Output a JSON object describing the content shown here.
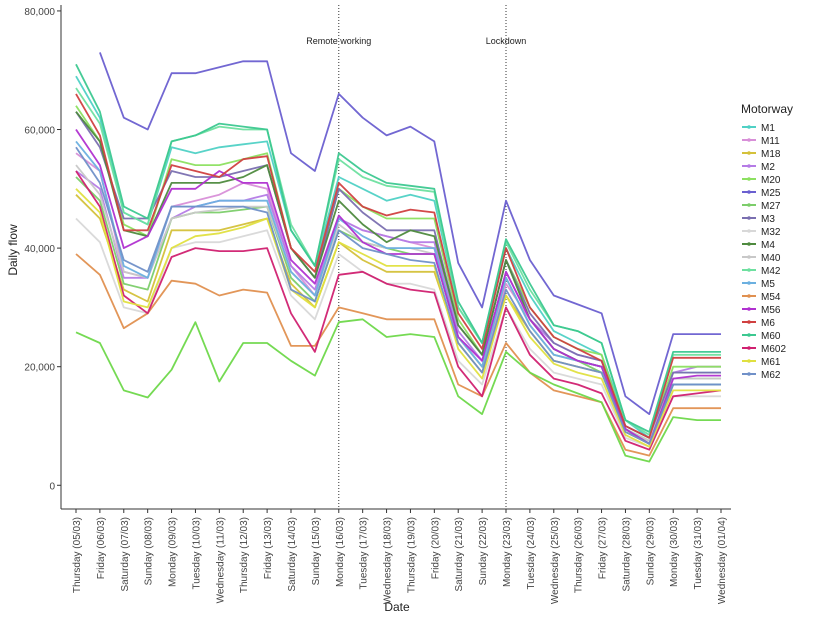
{
  "chart_data": {
    "type": "line",
    "xlabel": "Date",
    "ylabel": "Daily flow",
    "ylim": [
      -4000,
      81000
    ],
    "yticks": [
      0,
      20000,
      40000,
      60000,
      80000
    ],
    "ytick_labels": [
      "0",
      "20,000",
      "40,000",
      "60,000",
      "80,000"
    ],
    "grid": false,
    "legend": {
      "title": "Motorway",
      "placement": "right"
    },
    "categories": [
      "Thursday (05/03)",
      "Friday (06/03)",
      "Saturday (07/03)",
      "Sunday (08/03)",
      "Monday (09/03)",
      "Tuesday (10/03)",
      "Wednesday (11/03)",
      "Thursday (12/03)",
      "Friday (13/03)",
      "Saturday (14/03)",
      "Sunday (15/03)",
      "Monday (16/03)",
      "Tuesday (17/03)",
      "Wednesday (18/03)",
      "Thursday (19/03)",
      "Friday (20/03)",
      "Saturday (21/03)",
      "Sunday (22/03)",
      "Monday (23/03)",
      "Tuesday (24/03)",
      "Wednesday (25/03)",
      "Thursday (26/03)",
      "Friday (27/03)",
      "Saturday (28/03)",
      "Sunday (29/03)",
      "Monday (30/03)",
      "Tuesday (31/03)",
      "Wednesday (01/04)"
    ],
    "annotations": [
      {
        "at": "Monday (16/03)",
        "text": "Remote working"
      },
      {
        "at": "Monday (23/03)",
        "text": "Lockdown"
      }
    ],
    "series": [
      {
        "name": "M1",
        "color": "#4FD1C5",
        "values": [
          69000,
          62000,
          46000,
          44000,
          57000,
          56000,
          57000,
          57500,
          58000,
          43000,
          37000,
          52000,
          50000,
          48000,
          49000,
          48000,
          30000,
          24000,
          40000,
          32000,
          26000,
          24000,
          22000,
          11000,
          8000,
          19000,
          19000,
          19000
        ]
      },
      {
        "name": "M11",
        "color": "#D88FD8",
        "values": [
          56000,
          53000,
          36000,
          35000,
          47000,
          48000,
          49000,
          51000,
          50000,
          37000,
          32000,
          45000,
          43000,
          42000,
          41000,
          40000,
          25000,
          20000,
          34000,
          28000,
          23000,
          21000,
          20000,
          9500,
          7000,
          17000,
          17000,
          17000
        ]
      },
      {
        "name": "M18",
        "color": "#D4C13A",
        "values": [
          49000,
          45000,
          33000,
          31000,
          43000,
          43000,
          43000,
          44000,
          45000,
          34000,
          30000,
          41000,
          38000,
          36000,
          36000,
          36000,
          24000,
          19000,
          32000,
          26000,
          21000,
          20000,
          19000,
          9000,
          7000,
          17000,
          17000,
          17000
        ]
      },
      {
        "name": "M2",
        "color": "#B57BE6",
        "values": [
          53000,
          50000,
          35000,
          35000,
          45000,
          47000,
          48000,
          48000,
          49000,
          37000,
          33000,
          45000,
          43000,
          42000,
          41000,
          41000,
          26000,
          21000,
          36000,
          28000,
          24000,
          22000,
          21000,
          10000,
          8000,
          19000,
          20000,
          20000
        ]
      },
      {
        "name": "M20",
        "color": "#8CE060",
        "values": [
          64000,
          58000,
          44000,
          42000,
          55000,
          54000,
          54000,
          55000,
          56000,
          40000,
          35000,
          50000,
          47000,
          45000,
          45000,
          45000,
          28000,
          22000,
          38000,
          30000,
          25000,
          23000,
          22000,
          10000,
          8000,
          20000,
          20000,
          20000
        ]
      },
      {
        "name": "M25",
        "color": "#6A5FD0",
        "values": [
          null,
          73000,
          62000,
          60000,
          69500,
          69500,
          70500,
          71500,
          71500,
          56000,
          53000,
          66000,
          62000,
          59000,
          60500,
          58000,
          37500,
          30000,
          48000,
          38000,
          32000,
          30500,
          29000,
          15000,
          12000,
          25500,
          25500,
          25500
        ]
      },
      {
        "name": "M27",
        "color": "#7CCD6A",
        "values": [
          52000,
          48000,
          34000,
          33000,
          45000,
          46000,
          46000,
          46500,
          47000,
          35000,
          31000,
          43000,
          41000,
          40000,
          39000,
          39000,
          25000,
          20000,
          35000,
          27000,
          22000,
          21000,
          19000,
          9500,
          7500,
          18000,
          18000,
          18000
        ]
      },
      {
        "name": "M3",
        "color": "#7A6FB0",
        "values": [
          63000,
          57000,
          45000,
          45000,
          53000,
          52000,
          52000,
          53000,
          54000,
          40000,
          35000,
          50000,
          46000,
          43000,
          43000,
          43000,
          27000,
          22000,
          38000,
          29000,
          24000,
          22000,
          21000,
          10000,
          8000,
          19000,
          19000,
          19000
        ]
      },
      {
        "name": "M32",
        "color": "#D8D8D8",
        "values": [
          45000,
          41000,
          30000,
          29000,
          40000,
          41000,
          41000,
          42000,
          43000,
          32000,
          28000,
          39000,
          36000,
          34000,
          34000,
          33000,
          21000,
          17000,
          30000,
          23000,
          19000,
          18000,
          17000,
          8000,
          6500,
          15000,
          15000,
          15000
        ]
      },
      {
        "name": "M4",
        "color": "#4E8A3E",
        "values": [
          63000,
          58000,
          43000,
          42000,
          51000,
          51000,
          51000,
          52000,
          54000,
          40000,
          35000,
          48000,
          44000,
          41000,
          43000,
          42000,
          27000,
          22000,
          38000,
          28000,
          23000,
          21000,
          20000,
          9500,
          7000,
          17000,
          17000,
          17000
        ]
      },
      {
        "name": "M40",
        "color": "#C8C8C8",
        "values": [
          54000,
          49000,
          36000,
          35000,
          45000,
          46000,
          46500,
          47000,
          47000,
          36000,
          32000,
          44000,
          41000,
          40000,
          40000,
          39000,
          25000,
          20000,
          35000,
          27000,
          22000,
          21000,
          20000,
          9500,
          7500,
          18000,
          18000,
          18000
        ]
      },
      {
        "name": "M42",
        "color": "#6EE0A0",
        "values": [
          67000,
          61000,
          46000,
          44000,
          58000,
          59000,
          60500,
          60000,
          60000,
          44000,
          37000,
          55000,
          52000,
          50500,
          50000,
          49500,
          30000,
          24000,
          41000,
          33000,
          27000,
          26000,
          24000,
          11000,
          8500,
          22000,
          22000,
          22000
        ]
      },
      {
        "name": "M5",
        "color": "#6BB0E0",
        "values": [
          58000,
          53000,
          37000,
          35000,
          47000,
          47000,
          48000,
          48000,
          48000,
          36000,
          32000,
          45000,
          42000,
          40000,
          40000,
          40000,
          25000,
          20000,
          35000,
          27000,
          22000,
          21000,
          20000,
          9500,
          7000,
          17000,
          17000,
          17000
        ]
      },
      {
        "name": "M54",
        "color": "#E09050",
        "values": [
          39000,
          35500,
          26500,
          29000,
          34500,
          34000,
          32000,
          33000,
          32500,
          23500,
          23500,
          30000,
          29000,
          28000,
          28000,
          28000,
          17000,
          15000,
          24000,
          19000,
          16000,
          15000,
          14000,
          6000,
          5000,
          13000,
          13000,
          13000
        ]
      },
      {
        "name": "M56",
        "color": "#B030D0",
        "values": [
          60000,
          54000,
          40000,
          42000,
          50000,
          50000,
          53000,
          51000,
          51000,
          38000,
          34000,
          45500,
          41000,
          39000,
          39000,
          39000,
          25000,
          21000,
          36000,
          28000,
          23000,
          21000,
          20000,
          9500,
          7000,
          18000,
          18500,
          18500
        ]
      },
      {
        "name": "M6",
        "color": "#D04040",
        "values": [
          66000,
          59000,
          43000,
          43000,
          54000,
          53000,
          52000,
          55000,
          55500,
          40000,
          36000,
          51000,
          47000,
          45500,
          46500,
          46000,
          29000,
          23000,
          40000,
          30000,
          25000,
          23000,
          21000,
          10000,
          8000,
          21500,
          21500,
          21500
        ]
      },
      {
        "name": "M60",
        "color": "#3CC890",
        "values": [
          71000,
          63000,
          47000,
          45000,
          58000,
          59000,
          61000,
          60500,
          60000,
          43000,
          37000,
          56000,
          53000,
          51000,
          50500,
          50000,
          31000,
          24000,
          41500,
          34000,
          27000,
          26000,
          24000,
          11000,
          9000,
          22500,
          22500,
          22500
        ]
      },
      {
        "name": "M602",
        "color": "#D02070",
        "values": [
          53000,
          47000,
          32000,
          29000,
          38500,
          40000,
          39500,
          39500,
          40000,
          29000,
          22500,
          35500,
          36000,
          34000,
          33000,
          32500,
          20000,
          15000,
          30000,
          22000,
          18000,
          17000,
          15500,
          7500,
          6000,
          15000,
          15500,
          16000
        ]
      },
      {
        "name": "M61",
        "color": "#E0E040",
        "values": [
          50000,
          46000,
          31000,
          30000,
          40000,
          42000,
          42500,
          43500,
          45000,
          33000,
          30000,
          41000,
          39000,
          37000,
          37000,
          37000,
          23000,
          18000,
          32000,
          25000,
          20500,
          19000,
          18000,
          8500,
          6500,
          16000,
          16000,
          16000
        ]
      },
      {
        "name": "M62",
        "color": "#7090C8",
        "values": [
          57000,
          51000,
          38000,
          36000,
          47000,
          47000,
          47000,
          47000,
          46000,
          33000,
          31000,
          43000,
          40000,
          39000,
          38000,
          37500,
          24000,
          19000,
          33000,
          26000,
          21000,
          20000,
          19000,
          9000,
          7000,
          17000,
          17000,
          17000
        ]
      },
      {
        "name": "",
        "color": "#6ED84A",
        "values": [
          25800,
          24000,
          16000,
          14800,
          19500,
          27500,
          17500,
          24000,
          24000,
          21000,
          18500,
          27500,
          28000,
          25000,
          25500,
          25000,
          15000,
          12000,
          22500,
          19000,
          17000,
          15500,
          14000,
          5000,
          4000,
          11500,
          11000,
          11000
        ]
      }
    ]
  }
}
